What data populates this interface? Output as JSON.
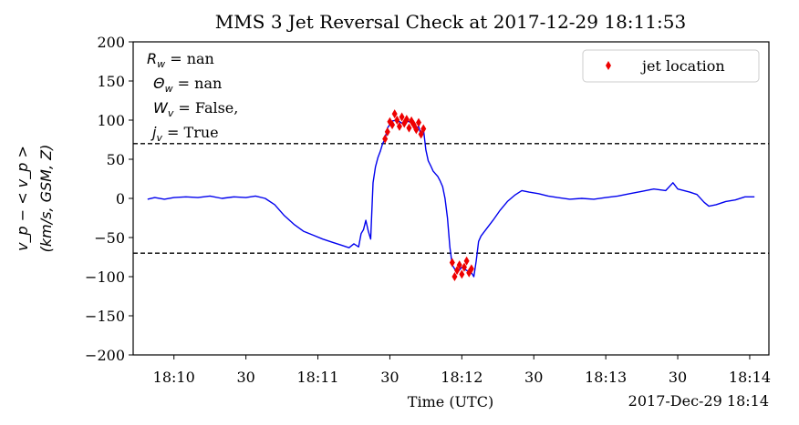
{
  "chart_data": {
    "type": "line",
    "title": "MMS 3 Jet Reversal Check at 2017-12-29 18:11:53",
    "xlabel": "Time (UTC)",
    "ylabel_line1": "v_p − < v_p >",
    "ylabel_line2": "(km/s, GSM, Z)",
    "x_offset_label": "2017-Dec-29 18:14",
    "xlim": [
      "2017-12-29 18:09:43",
      "2017-12-29 18:14:08"
    ],
    "ylim": [
      -200,
      200
    ],
    "xticks": [
      {
        "t": "2017-12-29 18:10:00",
        "label": "18:10"
      },
      {
        "t": "2017-12-29 18:10:30",
        "label": "30"
      },
      {
        "t": "2017-12-29 18:11:00",
        "label": "18:11"
      },
      {
        "t": "2017-12-29 18:11:30",
        "label": "30"
      },
      {
        "t": "2017-12-29 18:12:00",
        "label": "18:12"
      },
      {
        "t": "2017-12-29 18:12:30",
        "label": "30"
      },
      {
        "t": "2017-12-29 18:13:00",
        "label": "18:13"
      },
      {
        "t": "2017-12-29 18:13:30",
        "label": "30"
      },
      {
        "t": "2017-12-29 18:14:00",
        "label": "18:14"
      }
    ],
    "yticks": [
      -200,
      -150,
      -100,
      -50,
      0,
      50,
      100,
      150,
      200
    ],
    "ytick_labels": [
      "−200",
      "−150",
      "−100",
      "−50",
      "0",
      "50",
      "100",
      "150",
      "200"
    ],
    "threshold_lines": [
      70,
      -70
    ],
    "threshold_color": "#000000",
    "series": [
      {
        "color": "#0000ee",
        "style": "line",
        "points": [
          [
            "2017-12-29 18:09:49",
            -1
          ],
          [
            "2017-12-29 18:09:52",
            1
          ],
          [
            "2017-12-29 18:09:56",
            -1
          ],
          [
            "2017-12-29 18:10:00",
            1
          ],
          [
            "2017-12-29 18:10:05",
            2
          ],
          [
            "2017-12-29 18:10:10",
            1
          ],
          [
            "2017-12-29 18:10:15",
            3
          ],
          [
            "2017-12-29 18:10:20",
            0
          ],
          [
            "2017-12-29 18:10:25",
            2
          ],
          [
            "2017-12-29 18:10:30",
            1
          ],
          [
            "2017-12-29 18:10:34",
            3
          ],
          [
            "2017-12-29 18:10:38",
            0
          ],
          [
            "2017-12-29 18:10:42",
            -8
          ],
          [
            "2017-12-29 18:10:46",
            -22
          ],
          [
            "2017-12-29 18:10:50",
            -33
          ],
          [
            "2017-12-29 18:10:54",
            -42
          ],
          [
            "2017-12-29 18:10:58",
            -47
          ],
          [
            "2017-12-29 18:11:02",
            -52
          ],
          [
            "2017-12-29 18:11:06",
            -56
          ],
          [
            "2017-12-29 18:11:10",
            -60
          ],
          [
            "2017-12-29 18:11:13",
            -63
          ],
          [
            "2017-12-29 18:11:15",
            -58
          ],
          [
            "2017-12-29 18:11:17",
            -62
          ],
          [
            "2017-12-29 18:11:18",
            -45
          ],
          [
            "2017-12-29 18:11:19",
            -40
          ],
          [
            "2017-12-29 18:11:20",
            -28
          ],
          [
            "2017-12-29 18:11:21",
            -42
          ],
          [
            "2017-12-29 18:11:22",
            -52
          ],
          [
            "2017-12-29 18:11:23",
            20
          ],
          [
            "2017-12-29 18:11:24",
            40
          ],
          [
            "2017-12-29 18:11:25",
            52
          ],
          [
            "2017-12-29 18:11:26",
            60
          ],
          [
            "2017-12-29 18:11:27",
            70
          ],
          [
            "2017-12-29 18:11:28",
            76
          ],
          [
            "2017-12-29 18:11:29",
            90
          ],
          [
            "2017-12-29 18:11:31",
            99
          ],
          [
            "2017-12-29 18:11:33",
            100
          ],
          [
            "2017-12-29 18:11:35",
            96
          ],
          [
            "2017-12-29 18:11:37",
            99
          ],
          [
            "2017-12-29 18:11:39",
            97
          ],
          [
            "2017-12-29 18:11:41",
            90
          ],
          [
            "2017-12-29 18:11:42",
            92
          ],
          [
            "2017-12-29 18:11:43",
            80
          ],
          [
            "2017-12-29 18:11:44",
            88
          ],
          [
            "2017-12-29 18:11:45",
            62
          ],
          [
            "2017-12-29 18:11:46",
            48
          ],
          [
            "2017-12-29 18:11:47",
            42
          ],
          [
            "2017-12-29 18:11:48",
            35
          ],
          [
            "2017-12-29 18:11:50",
            28
          ],
          [
            "2017-12-29 18:11:51",
            22
          ],
          [
            "2017-12-29 18:11:52",
            15
          ],
          [
            "2017-12-29 18:11:53",
            0
          ],
          [
            "2017-12-29 18:11:54",
            -25
          ],
          [
            "2017-12-29 18:11:55",
            -62
          ],
          [
            "2017-12-29 18:11:56",
            -85
          ],
          [
            "2017-12-29 18:11:58",
            -95
          ],
          [
            "2017-12-29 18:12:00",
            -88
          ],
          [
            "2017-12-29 18:12:02",
            -92
          ],
          [
            "2017-12-29 18:12:04",
            -95
          ],
          [
            "2017-12-29 18:12:05",
            -100
          ],
          [
            "2017-12-29 18:12:06",
            -80
          ],
          [
            "2017-12-29 18:12:07",
            -55
          ],
          [
            "2017-12-29 18:12:08",
            -48
          ],
          [
            "2017-12-29 18:12:10",
            -40
          ],
          [
            "2017-12-29 18:12:13",
            -28
          ],
          [
            "2017-12-29 18:12:16",
            -15
          ],
          [
            "2017-12-29 18:12:19",
            -4
          ],
          [
            "2017-12-29 18:12:22",
            4
          ],
          [
            "2017-12-29 18:12:25",
            10
          ],
          [
            "2017-12-29 18:12:28",
            8
          ],
          [
            "2017-12-29 18:12:32",
            6
          ],
          [
            "2017-12-29 18:12:36",
            3
          ],
          [
            "2017-12-29 18:12:40",
            1
          ],
          [
            "2017-12-29 18:12:45",
            -1
          ],
          [
            "2017-12-29 18:12:50",
            0
          ],
          [
            "2017-12-29 18:12:55",
            -1
          ],
          [
            "2017-12-29 18:13:00",
            1
          ],
          [
            "2017-12-29 18:13:05",
            3
          ],
          [
            "2017-12-29 18:13:10",
            6
          ],
          [
            "2017-12-29 18:13:15",
            9
          ],
          [
            "2017-12-29 18:13:20",
            12
          ],
          [
            "2017-12-29 18:13:25",
            10
          ],
          [
            "2017-12-29 18:13:28",
            20
          ],
          [
            "2017-12-29 18:13:30",
            12
          ],
          [
            "2017-12-29 18:13:35",
            8
          ],
          [
            "2017-12-29 18:13:38",
            5
          ],
          [
            "2017-12-29 18:13:41",
            -5
          ],
          [
            "2017-12-29 18:13:43",
            -10
          ],
          [
            "2017-12-29 18:13:46",
            -8
          ],
          [
            "2017-12-29 18:13:50",
            -4
          ],
          [
            "2017-12-29 18:13:54",
            -2
          ],
          [
            "2017-12-29 18:13:58",
            2
          ],
          [
            "2017-12-29 18:14:02",
            2
          ]
        ]
      },
      {
        "name": "jet location",
        "color": "#ee0000",
        "style": "markers",
        "points": [
          [
            "2017-12-29 18:11:28",
            76
          ],
          [
            "2017-12-29 18:11:29",
            85
          ],
          [
            "2017-12-29 18:11:30",
            98
          ],
          [
            "2017-12-29 18:11:31",
            94
          ],
          [
            "2017-12-29 18:11:32",
            108
          ],
          [
            "2017-12-29 18:11:33",
            100
          ],
          [
            "2017-12-29 18:11:34",
            92
          ],
          [
            "2017-12-29 18:11:35",
            104
          ],
          [
            "2017-12-29 18:11:36",
            96
          ],
          [
            "2017-12-29 18:11:37",
            101
          ],
          [
            "2017-12-29 18:11:38",
            90
          ],
          [
            "2017-12-29 18:11:39",
            99
          ],
          [
            "2017-12-29 18:11:40",
            94
          ],
          [
            "2017-12-29 18:11:41",
            88
          ],
          [
            "2017-12-29 18:11:42",
            97
          ],
          [
            "2017-12-29 18:11:43",
            82
          ],
          [
            "2017-12-29 18:11:44",
            89
          ],
          [
            "2017-12-29 18:11:56",
            -82
          ],
          [
            "2017-12-29 18:11:57",
            -100
          ],
          [
            "2017-12-29 18:11:58",
            -92
          ],
          [
            "2017-12-29 18:11:59",
            -85
          ],
          [
            "2017-12-29 18:12:00",
            -97
          ],
          [
            "2017-12-29 18:12:01",
            -88
          ],
          [
            "2017-12-29 18:12:02",
            -80
          ],
          [
            "2017-12-29 18:12:03",
            -95
          ],
          [
            "2017-12-29 18:12:04",
            -90
          ]
        ]
      }
    ],
    "legend": {
      "position": "top-right",
      "entries": [
        {
          "label": "jet location",
          "color": "#ee0000",
          "marker": "diamond"
        }
      ]
    },
    "annotation_lines": [
      {
        "symbol": "R",
        "sub": "w",
        "text": " = nan"
      },
      {
        "symbol": "Θ",
        "sub": "w",
        "text": " = nan"
      },
      {
        "symbol": "W",
        "sub": "v",
        "text": " =              False,"
      },
      {
        "symbol": "j",
        "sub": "v",
        "text": " = True"
      }
    ],
    "grid": false
  }
}
